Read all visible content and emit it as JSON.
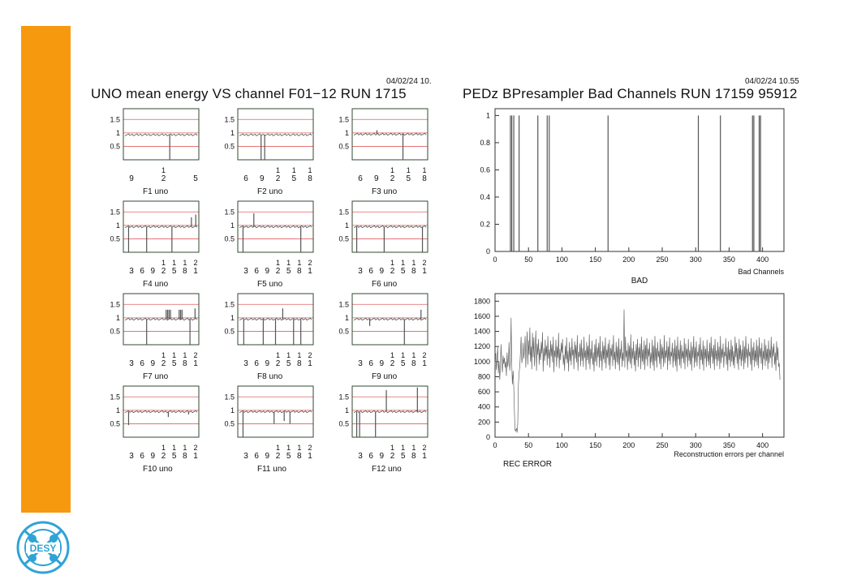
{
  "slide": {
    "left_title": "UNO mean energy  VS  channel F01−12   RUN 1715",
    "left_stamp": "04/02/24  10.",
    "right_title": "PEDz BPresampler Bad Channels  RUN 17159   95912",
    "right_stamp": "04/02/24  10.55",
    "logo_text": "DESY"
  },
  "colors": {
    "accent": "#f7990f",
    "logo_blue": "#2fa3d6",
    "grid_red": "#e06060",
    "grid_green": "#33aa33",
    "trace": "#555555"
  },
  "chart_data": [
    {
      "type": "line",
      "layout": "grid-4x3",
      "ylim": [
        0,
        1.9
      ],
      "yticks": [
        "1.5",
        "1",
        "0.5"
      ],
      "panels": [
        {
          "title": "F1   uno",
          "xticks_top": [
            "",
            "1",
            ""
          ],
          "xticks_bottom": [
            "9",
            "2",
            "5"
          ],
          "baseline": 0.93,
          "spikes": [
            [
              0.62,
              0.0
            ]
          ]
        },
        {
          "title": "F2   uno",
          "xticks_top": [
            "",
            "",
            "1",
            "1",
            "1"
          ],
          "xticks_bottom": [
            "6",
            "9",
            "2",
            "5",
            "8"
          ],
          "baseline": 0.93,
          "spikes": [
            [
              0.3,
              0.0
            ],
            [
              0.35,
              0.0
            ]
          ]
        },
        {
          "title": "F3   uno",
          "xticks_top": [
            "",
            "",
            "1",
            "1",
            "1"
          ],
          "xticks_bottom": [
            "6",
            "9",
            "2",
            "5",
            "8"
          ],
          "baseline": 0.95,
          "spikes": [
            [
              0.32,
              1.1
            ],
            [
              0.68,
              0.0
            ]
          ]
        },
        {
          "title": "F4   uno",
          "xticks_top": [
            "",
            "",
            "",
            "1",
            "1",
            "1",
            "2"
          ],
          "xticks_bottom": [
            "3",
            "6",
            "9",
            "2",
            "5",
            "8",
            "1"
          ],
          "baseline": 0.95,
          "spikes": [
            [
              0.05,
              0.0
            ],
            [
              0.3,
              0.0
            ],
            [
              0.65,
              0.0
            ],
            [
              0.92,
              1.3
            ],
            [
              0.98,
              1.4
            ]
          ]
        },
        {
          "title": "F5   uno",
          "xticks_top": [
            "",
            "",
            "",
            "1",
            "1",
            "1",
            "2"
          ],
          "xticks_bottom": [
            "3",
            "6",
            "9",
            "2",
            "5",
            "8",
            "1"
          ],
          "baseline": 0.95,
          "spikes": [
            [
              0.05,
              0.0
            ],
            [
              0.2,
              1.45
            ],
            [
              0.85,
              0.0
            ]
          ]
        },
        {
          "title": "F6   uno",
          "xticks_top": [
            "",
            "",
            "",
            "1",
            "1",
            "1",
            "2"
          ],
          "xticks_bottom": [
            "3",
            "6",
            "9",
            "2",
            "5",
            "8",
            "1"
          ],
          "baseline": 0.95,
          "spikes": [
            [
              0.04,
              0.0
            ],
            [
              0.42,
              0.0
            ],
            [
              0.95,
              0.0
            ]
          ]
        },
        {
          "title": "F7   uno",
          "xticks_top": [
            "",
            "",
            "",
            "1",
            "1",
            "1",
            "2"
          ],
          "xticks_bottom": [
            "3",
            "6",
            "9",
            "2",
            "5",
            "8",
            "1"
          ],
          "baseline": 0.95,
          "spikes": [
            [
              0.3,
              0.0
            ],
            [
              0.57,
              1.3
            ],
            [
              0.59,
              1.3
            ],
            [
              0.61,
              1.3
            ],
            [
              0.63,
              1.3
            ],
            [
              0.75,
              1.3
            ],
            [
              0.77,
              1.3
            ],
            [
              0.79,
              1.3
            ],
            [
              0.9,
              0.0
            ],
            [
              0.97,
              1.35
            ]
          ]
        },
        {
          "title": "F8   uno",
          "xticks_top": [
            "",
            "",
            "",
            "1",
            "1",
            "1",
            "2"
          ],
          "xticks_bottom": [
            "3",
            "6",
            "9",
            "2",
            "5",
            "8",
            "1"
          ],
          "baseline": 0.95,
          "spikes": [
            [
              0.06,
              0.0
            ],
            [
              0.33,
              0.0
            ],
            [
              0.5,
              0.0
            ],
            [
              0.6,
              1.35
            ],
            [
              0.75,
              0.0
            ],
            [
              0.85,
              0.0
            ]
          ]
        },
        {
          "title": "F9   uno",
          "xticks_top": [
            "",
            "",
            "",
            "1",
            "1",
            "1",
            "2"
          ],
          "xticks_bottom": [
            "3",
            "6",
            "9",
            "2",
            "5",
            "8",
            "1"
          ],
          "baseline": 0.95,
          "spikes": [
            [
              0.22,
              0.7
            ],
            [
              0.7,
              0.0
            ],
            [
              0.93,
              1.3
            ]
          ]
        },
        {
          "title": "F10   uno",
          "xticks_top": [
            "",
            "",
            "",
            "1",
            "1",
            "1",
            "2"
          ],
          "xticks_bottom": [
            "3",
            "6",
            "9",
            "2",
            "5",
            "8",
            "1"
          ],
          "baseline": 0.95,
          "spikes": [
            [
              0.05,
              0.45
            ],
            [
              0.6,
              0.75
            ],
            [
              0.88,
              0.85
            ]
          ]
        },
        {
          "title": "F11   uno",
          "xticks_top": [
            "",
            "",
            "",
            "1",
            "1",
            "1",
            "2"
          ],
          "xticks_bottom": [
            "3",
            "6",
            "9",
            "2",
            "5",
            "8",
            "1"
          ],
          "baseline": 0.95,
          "spikes": [
            [
              0.05,
              0.0
            ],
            [
              0.48,
              0.5
            ],
            [
              0.62,
              0.6
            ],
            [
              0.7,
              0.5
            ]
          ]
        },
        {
          "title": "F12   uno",
          "xticks_top": [
            "",
            "",
            "",
            "1",
            "1",
            "1",
            "2"
          ],
          "xticks_bottom": [
            "3",
            "6",
            "9",
            "2",
            "5",
            "8",
            "1"
          ],
          "baseline": 0.95,
          "spikes": [
            [
              0.04,
              0.0
            ],
            [
              0.08,
              0.0
            ],
            [
              0.3,
              0.0
            ],
            [
              0.45,
              1.75
            ],
            [
              0.88,
              1.85
            ]
          ]
        }
      ]
    },
    {
      "type": "bar",
      "title": "",
      "xlabel": "Bad Channels",
      "caption": "BAD",
      "xlim": [
        0,
        432
      ],
      "ylim": [
        0,
        1.05
      ],
      "xticks": [
        0,
        50,
        100,
        150,
        200,
        250,
        300,
        350,
        400
      ],
      "yticks": [
        "0",
        "0.2",
        "0.4",
        "0.6",
        "0.8",
        "1"
      ],
      "bad_channels": [
        23,
        25,
        28,
        36,
        64,
        78,
        81,
        169,
        304,
        337,
        385,
        387,
        395,
        397
      ],
      "values": [
        1,
        1,
        1,
        1,
        1,
        1,
        1,
        1,
        1,
        1,
        1,
        1,
        1,
        1
      ]
    },
    {
      "type": "line",
      "title": "",
      "xlabel": "Reconstruction errors per channel",
      "caption": "REC ERROR",
      "xlim": [
        0,
        432
      ],
      "ylim": [
        0,
        1900
      ],
      "xticks": [
        0,
        50,
        100,
        150,
        200,
        250,
        300,
        350,
        400
      ],
      "yticks": [
        0,
        200,
        400,
        600,
        800,
        1000,
        1200,
        1400,
        1600,
        1800
      ],
      "series": [
        {
          "values": [
            960,
            1110,
            890,
            1060,
            1190,
            850,
            1000,
            760,
            940,
            1230,
            990,
            860,
            1080,
            970,
            1050,
            920,
            1000,
            810,
            1120,
            930,
            1020,
            1260,
            880,
            1000,
            1580,
            960,
            700,
            880,
            660,
            330,
            90,
            80,
            120,
            60,
            180,
            700,
            860,
            940,
            1120,
            1330,
            980,
            1060,
            1250,
            1040,
            1150,
            1340,
            920,
            1180,
            1400,
            960,
            1280,
            1090,
            1450,
            1000,
            1200,
            900,
            1380,
            1060,
            1320,
            940,
            1180,
            1410,
            880,
            1240,
            1090,
            1300,
            960,
            1170,
            1020,
            1260,
            1110,
            1390,
            870,
            1180,
            1010,
            1290,
            1080,
            1210,
            950,
            1340,
            1040,
            1160,
            920,
            1280,
            1070,
            1230,
            990,
            1330,
            860,
            1150,
            1060,
            1290,
            930,
            1200,
            1050,
            1380,
            910,
            1170,
            1020,
            1250,
            1120,
            1300,
            960,
            1090,
            880,
            1210,
            1030,
            1320,
            980,
            1140,
            870,
            1260,
            1010,
            1190,
            950,
            1310,
            1080,
            1160,
            900,
            1270,
            1040,
            1220,
            990,
            1350,
            880,
            1130,
            1060,
            1240,
            940,
            1290,
            1010,
            1180,
            930,
            1330,
            1050,
            1150,
            890,
            1260,
            1020,
            1210,
            970,
            1360,
            900,
            1170,
            1040,
            1280,
            960,
            1120,
            870,
            1230,
            1000,
            1300,
            940,
            1190,
            1060,
            1250,
            920,
            1340,
            1010,
            1140,
            880,
            1270,
            1030,
            1210,
            980,
            1320,
            910,
            1160,
            1050,
            1240,
            950,
            1290,
            890,
            1180,
            1070,
            1230,
            940,
            1350,
            1020,
            1130,
            900,
            1260,
            990,
            1200,
            960,
            1310,
            880,
            1170,
            1040,
            1280,
            930,
            1120,
            1010,
            1690,
            920,
            1330,
            1060,
            1150,
            890,
            1250,
            1000,
            1210,
            970,
            1360,
            910,
            1180,
            1040,
            1270,
            950,
            1140,
            870,
            1230,
            1020,
            1300,
            930,
            1190,
            1050,
            1240,
            900,
            1330,
            1000,
            1160,
            960,
            1280,
            890,
            1220,
            1030,
            1310,
            940,
            1170,
            1070,
            1250,
            910,
            1120,
            990,
            1290,
            950,
            1210,
            880,
            1340,
            1010,
            1180,
            920,
            1260,
            1060,
            1140,
            970,
            1300,
            900,
            1230,
            1040,
            1190,
            930,
            1350,
            980,
            1150,
            1050,
            1270,
            890,
            1200,
            1010,
            1320,
            960,
            1130,
            1070,
            1250,
            920,
            1180,
            1000,
            1290,
            940,
            1210,
            870,
            1330,
            1030,
            1160,
            950,
            1280,
            910,
            1220,
            1040,
            1140,
            980,
            1310,
            900,
            1240,
            1060,
            1170,
            930,
            1300,
            1010,
            1150,
            960,
            1260,
            880,
            1200,
            1050,
            1340,
            920,
            1190,
            990,
            1270,
            940,
            1130,
            1070,
            1230,
            900,
            1320,
            1020,
            1160,
            960,
            1280,
            880,
            1210,
            1040,
            1170,
            930,
            1290,
            1000,
            1140,
            950,
            1250,
            910,
            1330,
            1060,
            1180,
            970,
            1220,
            890,
            1300,
            1030,
            1150,
            940,
            1260,
            1010,
            1200,
            900,
            1340,
            980,
            1170,
            1050,
            1240,
            920,
            1130,
            1070,
            1310,
            960,
            1190,
            880,
            1270,
            1020,
            1160,
            930,
            1290,
            1000,
            1210,
            950,
            1140,
            910,
            1330,
            1060,
            1250,
            970,
            1180,
            890,
            1300,
            1030,
            1220,
            940,
            1160,
            1010,
            1280,
            900,
            1200,
            980,
            1340,
            1050,
            1170,
            920,
            1240,
            1070,
            1130,
            960,
            1310,
            880,
            1190,
            1020,
            1260,
            930,
            1150,
            1000,
            1290,
            950,
            1210,
            910,
            1320,
            1060,
            1180,
            970,
            1250,
            890,
            1140,
            1030,
            1300,
            940,
            1220,
            1010,
            1170,
            900,
            1280,
            980,
            1160,
            1050,
            1330,
            920,
            1200,
            1070,
            1240,
            960,
            1120,
            880,
            1270,
            1020,
            1190,
            930,
            980,
            760
          ]
        }
      ]
    }
  ]
}
